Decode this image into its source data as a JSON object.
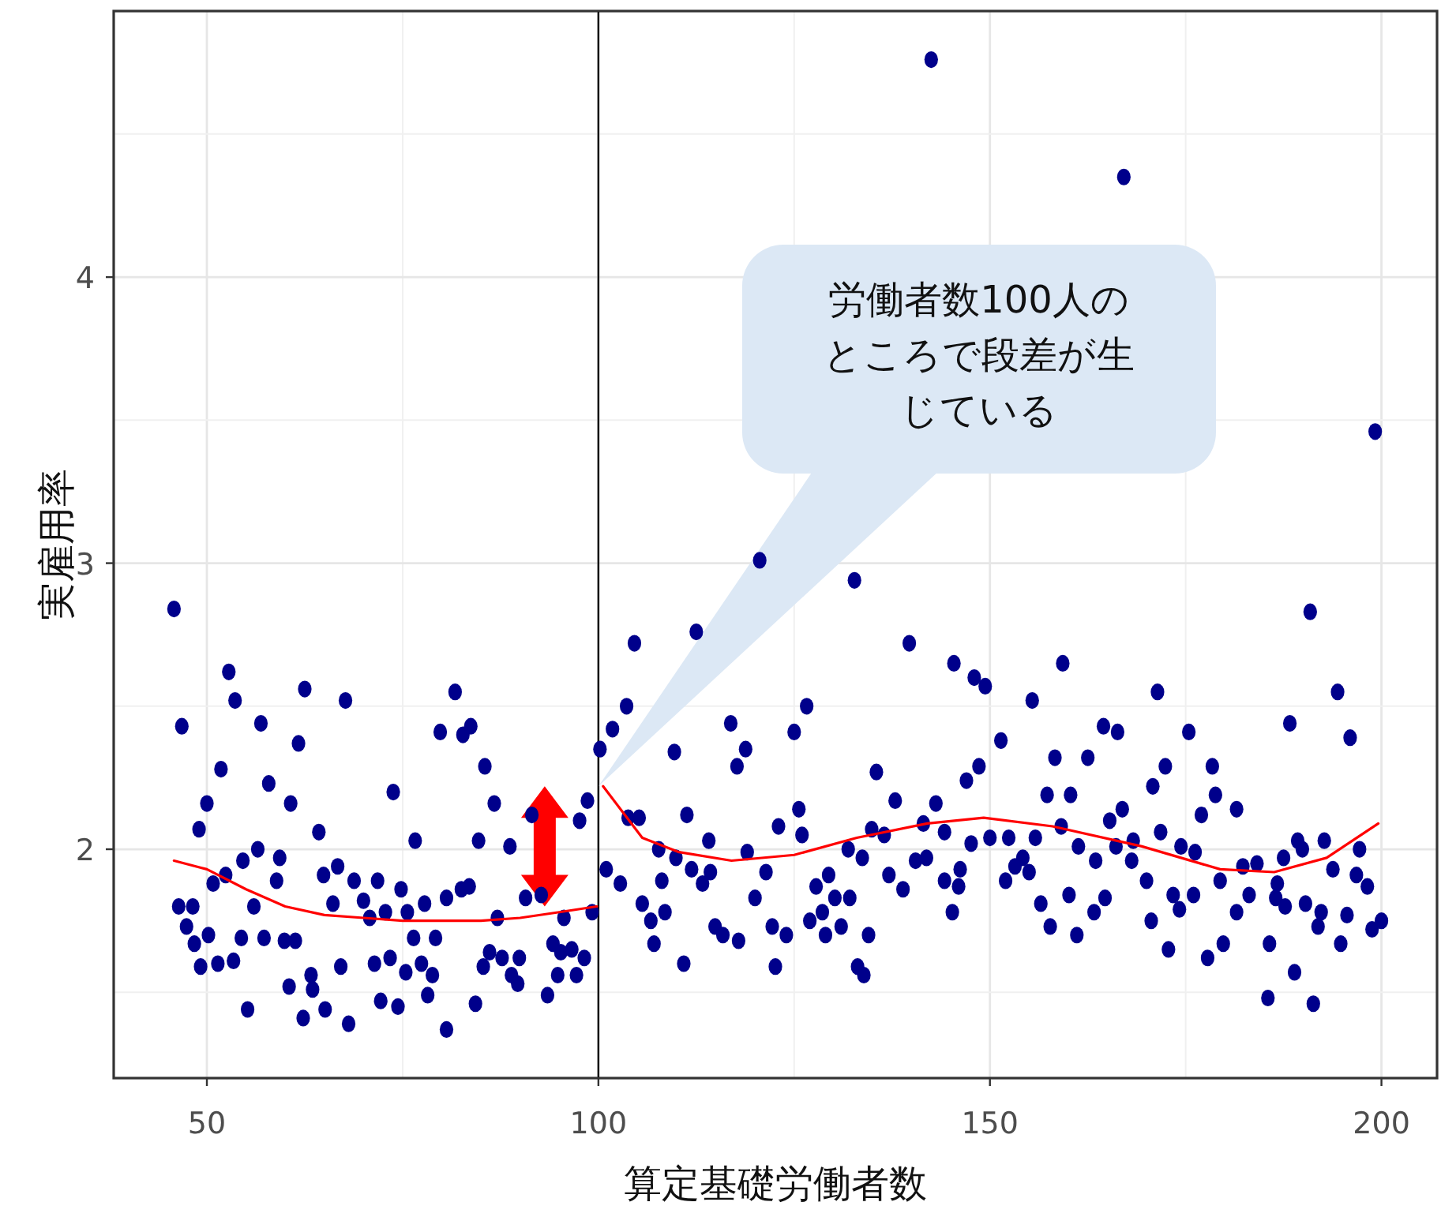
{
  "chart_data": {
    "type": "scatter",
    "xlabel": "算定基礎労働者数",
    "ylabel": "実雇用率",
    "xlim": [
      38.1,
      207.1
    ],
    "ylim": [
      1.2,
      4.93
    ],
    "xticks": [
      50,
      100,
      150,
      200
    ],
    "yticks": [
      2,
      3,
      4
    ],
    "grid": true,
    "series": [
      {
        "type": "scatter",
        "marker": "circle",
        "color": "#00008b",
        "x": [
          45.8,
          46.8,
          52.8,
          53.6,
          51.8,
          56.9,
          57.9,
          50.0,
          49.0,
          60.7,
          61.7,
          62.5,
          67.7,
          64.3,
          56.5,
          54.6,
          59.3,
          58.9,
          52.4,
          50.8,
          46.4,
          48.2,
          47.4,
          48.4,
          49.2,
          50.2,
          51.4,
          53.4,
          54.4,
          56.0,
          57.3,
          59.9,
          61.3,
          55.2,
          60.5,
          63.3,
          63.5,
          62.3,
          65.1,
          67.1,
          68.1,
          64.9,
          66.7,
          66.1,
          68.8,
          70.0,
          70.8,
          71.8,
          72.8,
          74.8,
          75.6,
          73.8,
          76.6,
          71.4,
          73.4,
          75.4,
          76.4,
          72.2,
          74.4,
          77.8,
          77.4,
          79.2,
          78.8,
          78.2,
          80.6,
          80.6,
          82.5,
          83.5,
          81.7,
          79.8,
          82.7,
          83.7,
          85.5,
          86.7,
          84.7,
          88.7,
          91.5,
          98.6,
          97.6,
          87.1,
          86.1,
          85.3,
          84.3,
          87.7,
          88.9,
          89.7,
          89.9,
          90.7,
          92.7,
          94.2,
          95.2,
          94.8,
          93.5,
          95.6,
          96.6,
          97.2,
          98.2,
          99.2,
          100.2,
          101.8,
          103.6,
          104.6,
          112.5,
          120.6,
          132.7,
          109.7,
          116.9,
          118.8,
          117.7,
          125.0,
          126.6,
          139.7,
          145.4,
          148.0,
          149.4,
          155.4,
          151.4,
          148.6,
          147.0,
          135.5,
          137.9,
          143.1,
          157.3,
          158.3,
          125.6,
          126.0,
          123.0,
          103.8,
          105.2,
          111.3,
          114.1,
          107.7,
          109.9,
          101.0,
          102.8,
          108.1,
          111.9,
          113.3,
          114.3,
          119.0,
          121.4,
          131.9,
          133.7,
          134.9,
          136.5,
          141.5,
          144.2,
          140.5,
          141.9,
          147.6,
          150.0,
          152.4,
          154.2,
          155.8,
          137.1,
          138.9,
          144.2,
          146.2,
          146.0,
          145.2,
          152.0,
          153.2,
          155.0,
          127.8,
          129.4,
          130.2,
          132.1,
          120.0,
          105.6,
          108.5,
          106.7,
          107.1,
          110.9,
          114.9,
          115.9,
          117.9,
          122.2,
          124.0,
          122.6,
          127.0,
          128.6,
          129.0,
          131.0,
          134.5,
          133.1,
          133.9,
          156.5,
          157.7,
          190.9,
          194.4,
          196.0,
          188.3,
          159.3,
          171.4,
          164.5,
          166.3,
          175.4,
          162.5,
          172.4,
          178.4,
          170.8,
          178.8,
          160.3,
          166.9,
          165.3,
          177.0,
          181.5,
          159.1,
          161.3,
          163.5,
          166.1,
          168.3,
          168.1,
          171.8,
          174.4,
          176.2,
          170.0,
          173.4,
          174.2,
          176.0,
          179.4,
          182.3,
          184.1,
          183.1,
          181.5,
          179.8,
          177.8,
          172.8,
          170.6,
          186.7,
          186.5,
          187.7,
          187.5,
          189.3,
          189.9,
          192.7,
          193.8,
          197.2,
          196.8,
          198.2,
          190.3,
          192.3,
          191.9,
          195.6,
          200.0,
          198.8,
          194.8,
          185.7,
          188.9,
          185.5,
          191.3,
          160.1,
          161.1,
          163.3,
          164.7,
          142.5,
          167.1,
          199.2
        ],
        "values": [
          2.84,
          2.43,
          2.62,
          2.52,
          2.28,
          2.44,
          2.23,
          2.16,
          2.07,
          2.16,
          2.37,
          2.56,
          2.52,
          2.06,
          2.0,
          1.96,
          1.97,
          1.89,
          1.91,
          1.88,
          1.8,
          1.8,
          1.73,
          1.67,
          1.59,
          1.7,
          1.6,
          1.61,
          1.69,
          1.8,
          1.69,
          1.68,
          1.68,
          1.44,
          1.52,
          1.56,
          1.51,
          1.41,
          1.44,
          1.59,
          1.39,
          1.91,
          1.94,
          1.81,
          1.89,
          1.82,
          1.76,
          1.89,
          1.78,
          1.86,
          1.78,
          2.2,
          2.03,
          1.6,
          1.62,
          1.57,
          1.69,
          1.47,
          1.45,
          1.81,
          1.6,
          1.69,
          1.56,
          1.49,
          1.37,
          1.83,
          1.86,
          1.87,
          2.55,
          2.41,
          2.4,
          2.43,
          2.29,
          2.16,
          2.03,
          2.01,
          2.12,
          2.17,
          2.1,
          1.76,
          1.64,
          1.59,
          1.46,
          1.62,
          1.56,
          1.53,
          1.62,
          1.83,
          1.84,
          1.67,
          1.64,
          1.56,
          1.49,
          1.76,
          1.65,
          1.56,
          1.62,
          1.78,
          2.35,
          2.42,
          2.5,
          2.72,
          2.76,
          3.01,
          2.94,
          2.34,
          2.44,
          2.35,
          2.29,
          2.41,
          2.5,
          2.72,
          2.65,
          2.6,
          2.57,
          2.52,
          2.38,
          2.29,
          2.24,
          2.27,
          2.17,
          2.16,
          2.19,
          2.32,
          2.14,
          2.05,
          2.08,
          2.11,
          2.11,
          2.12,
          2.03,
          2.0,
          1.97,
          1.93,
          1.88,
          1.89,
          1.93,
          1.88,
          1.92,
          1.99,
          1.92,
          2.0,
          1.97,
          2.07,
          2.05,
          2.09,
          2.06,
          1.96,
          1.97,
          2.02,
          2.04,
          2.04,
          1.97,
          2.04,
          1.91,
          1.86,
          1.89,
          1.93,
          1.87,
          1.78,
          1.89,
          1.94,
          1.92,
          1.87,
          1.91,
          1.83,
          1.83,
          1.83,
          1.81,
          1.78,
          1.75,
          1.67,
          1.6,
          1.73,
          1.7,
          1.68,
          1.73,
          1.7,
          1.59,
          1.75,
          1.78,
          1.7,
          1.73,
          1.7,
          1.59,
          1.56,
          1.81,
          1.73,
          2.83,
          2.55,
          2.39,
          2.44,
          2.65,
          2.55,
          2.43,
          2.41,
          2.41,
          2.32,
          2.29,
          2.29,
          2.22,
          2.19,
          2.19,
          2.14,
          2.1,
          2.12,
          2.14,
          2.08,
          2.01,
          1.96,
          2.01,
          2.03,
          1.96,
          2.06,
          2.01,
          1.99,
          1.89,
          1.84,
          1.79,
          1.84,
          1.89,
          1.94,
          1.95,
          1.84,
          1.78,
          1.67,
          1.62,
          1.65,
          1.75,
          1.88,
          1.83,
          1.8,
          1.97,
          2.03,
          2.0,
          2.03,
          1.93,
          2.0,
          1.91,
          1.87,
          1.81,
          1.78,
          1.73,
          1.77,
          1.75,
          1.72,
          1.67,
          1.67,
          1.57,
          1.48,
          1.46,
          1.84,
          1.7,
          1.78,
          1.83,
          4.76,
          4.35,
          3.46
        ]
      },
      {
        "type": "line",
        "color": "#ff0000",
        "x": [
          45.8,
          50,
          55,
          60,
          65,
          70,
          75,
          80,
          85,
          90,
          95,
          99.8
        ],
        "values": [
          1.96,
          1.93,
          1.86,
          1.8,
          1.77,
          1.76,
          1.75,
          1.75,
          1.75,
          1.76,
          1.78,
          1.8
        ]
      },
      {
        "type": "line",
        "color": "#ff0000",
        "x": [
          100.6,
          105.6,
          110.3,
          117,
          125,
          133,
          142,
          149.2,
          158,
          169.4,
          179.4,
          186.3,
          193,
          199.6
        ],
        "values": [
          2.22,
          2.04,
          1.99,
          1.96,
          1.98,
          2.04,
          2.09,
          2.11,
          2.08,
          2.01,
          1.93,
          1.92,
          1.97,
          2.09
        ]
      }
    ],
    "ref_lines": [
      {
        "axis": "x",
        "value": 100,
        "color": "#000000"
      }
    ],
    "annotations": [
      "労働者数100人のところで段差が生じている"
    ]
  }
}
